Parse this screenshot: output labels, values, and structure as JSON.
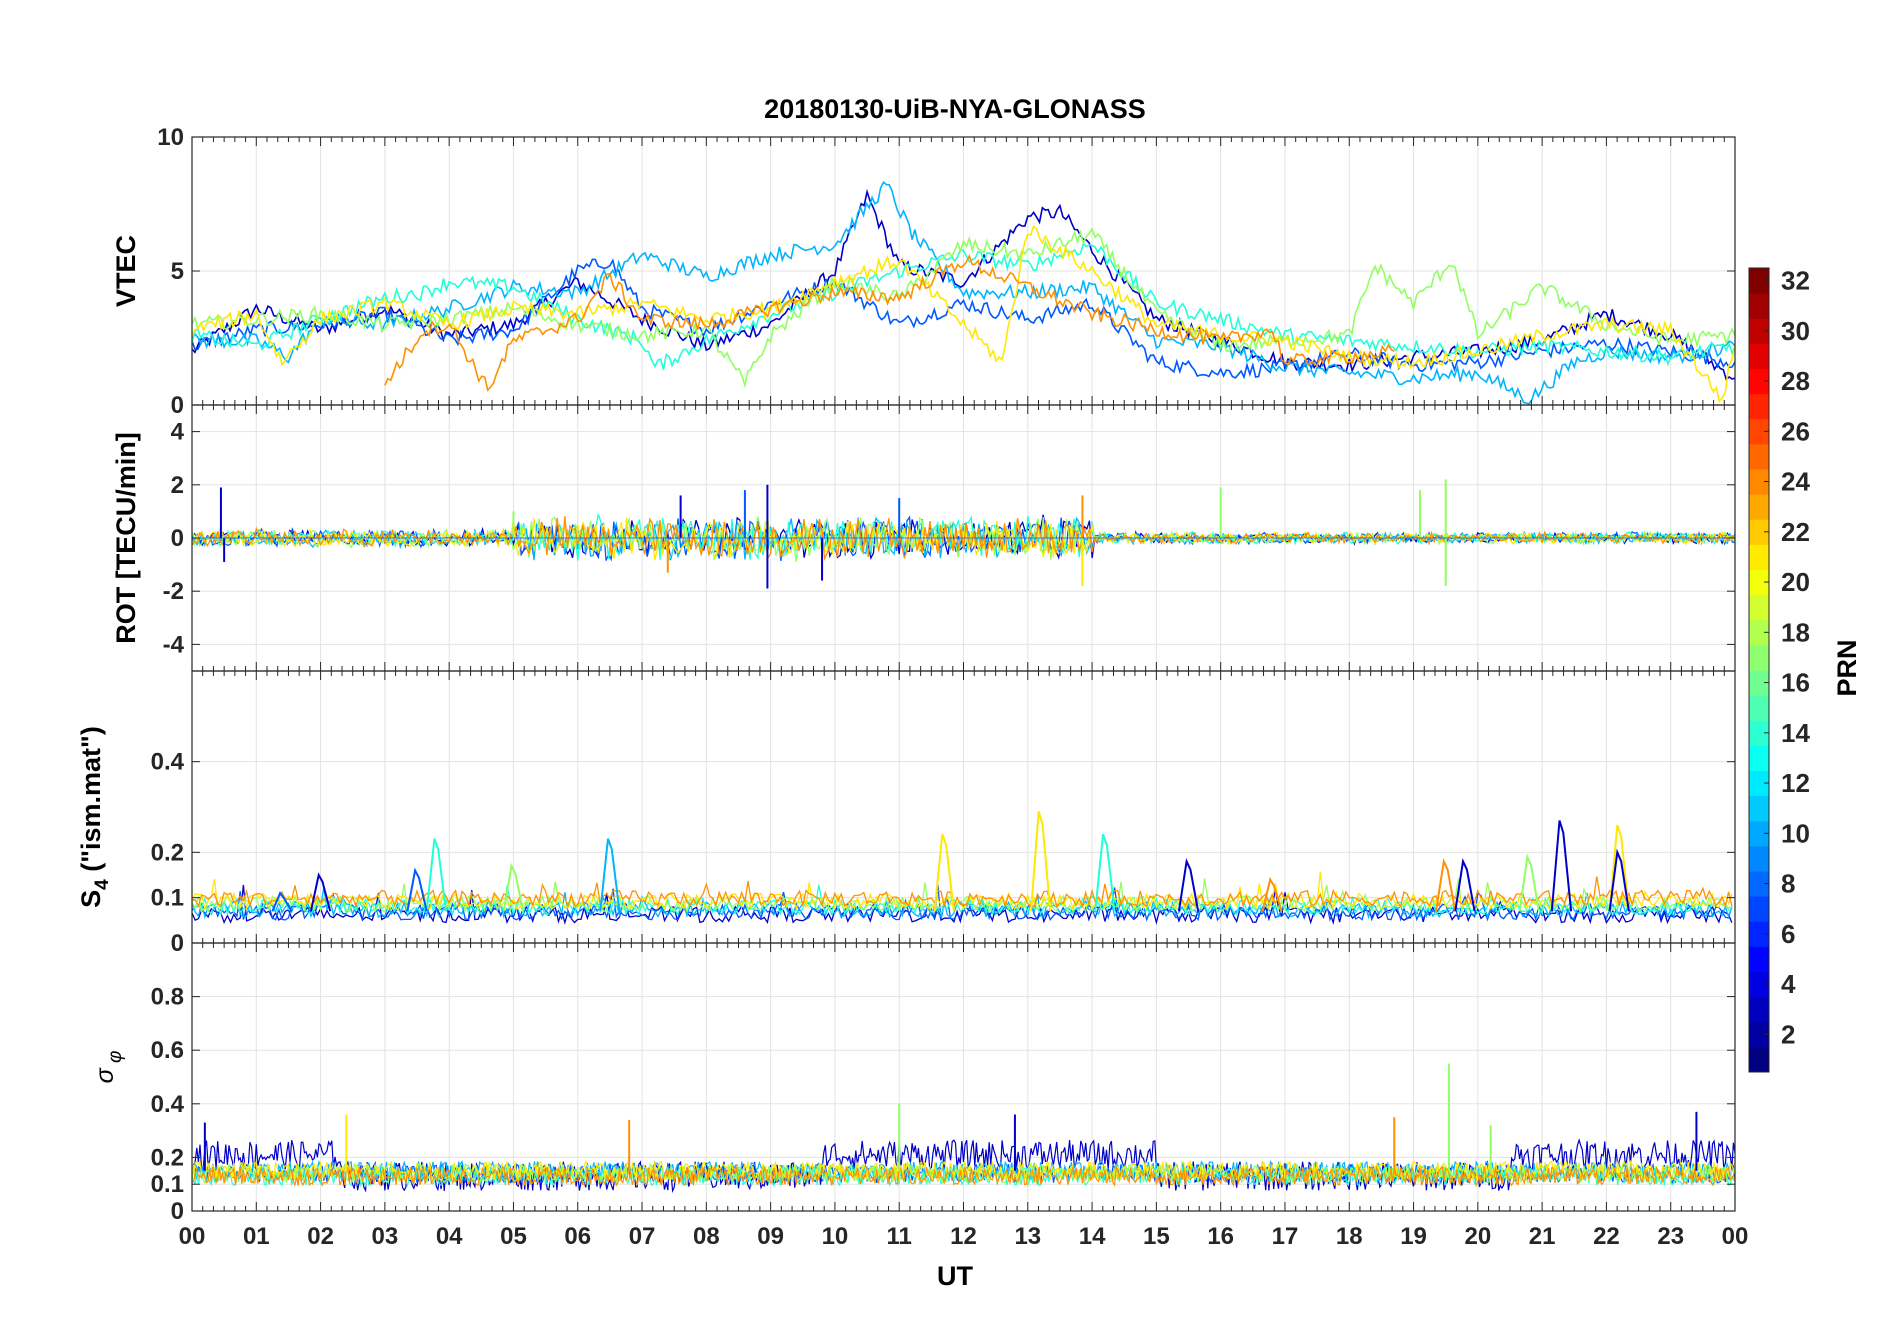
{
  "figure": {
    "title": "20180130-UiB-NYA-GLONASS",
    "xlabel": "UT",
    "xticks": [
      "00",
      "01",
      "02",
      "03",
      "04",
      "05",
      "06",
      "07",
      "08",
      "09",
      "10",
      "11",
      "12",
      "13",
      "14",
      "15",
      "16",
      "17",
      "18",
      "19",
      "20",
      "21",
      "22",
      "23",
      "00"
    ]
  },
  "colorbar": {
    "label": "PRN",
    "range": [
      1,
      32
    ],
    "ticks": [
      "2",
      "4",
      "6",
      "8",
      "10",
      "12",
      "14",
      "16",
      "18",
      "20",
      "22",
      "24",
      "26",
      "28",
      "30",
      "32"
    ],
    "colormap": "jet"
  },
  "chart_data": [
    {
      "type": "line",
      "panel": "vtec",
      "ylabel": "VTEC",
      "ylim": [
        0,
        10
      ],
      "yticks": [
        "0",
        "5",
        "10"
      ],
      "grid": true,
      "series": [
        {
          "prn": 2,
          "color": "#0000c8",
          "x": [
            0.0,
            1.0,
            2.0,
            3.0,
            4.0,
            5.0,
            6.0,
            7.0,
            8.0,
            9.0,
            10.0,
            10.5,
            11.0,
            12.0,
            13.0,
            13.5,
            14.0,
            15.0,
            16.0,
            17.0,
            18.0,
            19.0,
            20.0,
            21.0,
            22.0,
            23.0,
            24.0
          ],
          "y": [
            2.0,
            3.6,
            2.8,
            3.6,
            2.6,
            3.0,
            4.6,
            3.2,
            2.2,
            3.0,
            5.0,
            7.8,
            5.2,
            4.6,
            7.0,
            7.2,
            5.8,
            3.2,
            2.4,
            1.6,
            1.5,
            1.8,
            2.0,
            2.4,
            3.4,
            2.6,
            1.0
          ]
        },
        {
          "prn": 6,
          "color": "#0058ff",
          "x": [
            0.0,
            1.0,
            2.0,
            3.0,
            4.0,
            5.0,
            6.0,
            6.5,
            7.0,
            8.0,
            9.0,
            10.0,
            11.0,
            12.0,
            13.0,
            14.0,
            15.0,
            16.0,
            17.0,
            18.0,
            19.0,
            20.0,
            21.0,
            22.0,
            23.0,
            24.0
          ],
          "y": [
            2.2,
            2.8,
            3.0,
            3.4,
            2.4,
            2.8,
            5.0,
            5.4,
            3.6,
            2.8,
            3.8,
            4.6,
            3.0,
            3.8,
            3.2,
            3.8,
            1.6,
            1.2,
            1.4,
            1.9,
            1.5,
            1.6,
            2.0,
            2.3,
            2.0,
            1.6
          ]
        },
        {
          "prn": 10,
          "color": "#00b4ff",
          "x": [
            0.0,
            1.0,
            1.5,
            2.0,
            3.0,
            4.0,
            5.0,
            6.0,
            7.0,
            8.0,
            9.0,
            10.0,
            10.8,
            11.2,
            12.0,
            13.0,
            14.0,
            15.0,
            16.0,
            17.0,
            18.0,
            19.0,
            20.0,
            20.8,
            21.5,
            22.0,
            23.0,
            24.0
          ],
          "y": [
            2.4,
            2.4,
            1.8,
            3.2,
            3.0,
            3.6,
            4.4,
            4.2,
            5.6,
            4.8,
            5.6,
            6.0,
            8.2,
            6.4,
            4.2,
            4.2,
            4.4,
            2.4,
            2.2,
            1.4,
            1.2,
            1.0,
            1.2,
            0.2,
            1.6,
            2.0,
            1.8,
            2.2
          ]
        },
        {
          "prn": 14,
          "color": "#20ffd8",
          "x": [
            0.0,
            1.0,
            2.0,
            3.0,
            3.6,
            4.0,
            5.0,
            6.0,
            7.0,
            7.2,
            8.0,
            9.0,
            10.0,
            11.0,
            12.0,
            13.0,
            14.0,
            15.0,
            16.0,
            17.0,
            18.0,
            19.0,
            20.0,
            21.0,
            22.0,
            23.0,
            24.0
          ],
          "y": [
            2.6,
            2.2,
            3.2,
            4.0,
            4.2,
            4.6,
            4.4,
            3.2,
            2.4,
            1.4,
            2.4,
            3.4,
            4.2,
            5.0,
            5.6,
            5.2,
            6.0,
            3.8,
            3.2,
            2.6,
            2.4,
            2.2,
            2.0,
            2.2,
            2.0,
            1.8,
            2.2
          ]
        },
        {
          "prn": 17,
          "color": "#90ff60",
          "x": [
            0.0,
            1.0,
            2.0,
            3.0,
            4.0,
            5.0,
            6.0,
            7.0,
            8.0,
            8.6,
            9.0,
            10.0,
            11.0,
            12.0,
            13.0,
            14.0,
            15.0,
            16.0,
            17.0,
            18.0,
            18.4,
            19.0,
            19.6,
            20.0,
            21.0,
            22.0,
            23.0,
            24.0
          ],
          "y": [
            3.0,
            3.2,
            3.4,
            3.0,
            3.2,
            3.6,
            3.0,
            2.6,
            2.8,
            0.8,
            2.6,
            4.6,
            4.0,
            6.0,
            5.6,
            6.4,
            3.4,
            2.2,
            2.4,
            2.6,
            5.2,
            3.8,
            5.4,
            2.6,
            4.4,
            3.0,
            2.4,
            2.6
          ]
        },
        {
          "prn": 20,
          "color": "#ffe800",
          "x": [
            0.0,
            1.0,
            1.4,
            2.0,
            3.0,
            4.0,
            5.0,
            6.0,
            7.0,
            8.0,
            9.0,
            10.0,
            11.0,
            12.0,
            12.6,
            13.0,
            14.0,
            15.0,
            16.0,
            17.0,
            18.0,
            19.0,
            20.0,
            21.0,
            22.0,
            23.0,
            23.8,
            24.0
          ],
          "y": [
            2.8,
            3.4,
            1.6,
            3.2,
            3.8,
            3.0,
            3.6,
            3.4,
            3.8,
            3.2,
            3.6,
            4.6,
            5.4,
            3.0,
            1.6,
            6.6,
            5.0,
            3.0,
            2.6,
            2.4,
            1.8,
            1.6,
            2.0,
            2.6,
            3.0,
            2.8,
            0.2,
            2.2
          ]
        },
        {
          "prn": 23,
          "color": "#ff9000",
          "x": [
            3.0,
            3.6,
            4.0,
            4.6,
            5.0,
            6.0,
            6.5,
            7.0,
            8.0,
            9.0,
            10.0,
            11.0,
            12.0,
            13.0,
            14.0,
            15.0,
            16.0,
            16.8,
            17.0,
            18.0,
            18.7
          ],
          "y": [
            0.8,
            2.8,
            3.0,
            0.6,
            2.4,
            3.2,
            4.8,
            3.2,
            3.0,
            3.6,
            4.2,
            4.0,
            5.4,
            4.4,
            3.4,
            2.8,
            2.4,
            2.8,
            1.6,
            1.8,
            2.0
          ]
        }
      ]
    },
    {
      "type": "line",
      "panel": "rot",
      "ylabel": "ROT [TECU/min]",
      "ylim": [
        -5,
        5
      ],
      "yticks": [
        "-4",
        "-2",
        "0",
        "2",
        "4"
      ],
      "grid": true,
      "series_pattern": "noise around 0; envelope ±0.3 (00–05 UT), ±0.8 (05–14 UT), ±0.2 (14–24 UT)",
      "spikes": [
        {
          "x": 0.45,
          "y": 1.9,
          "color": "#0000c8"
        },
        {
          "x": 0.5,
          "y": -0.9,
          "color": "#0000c8"
        },
        {
          "x": 5.0,
          "y": 1.0,
          "color": "#90ff60"
        },
        {
          "x": 7.4,
          "y": -1.3,
          "color": "#ff9000"
        },
        {
          "x": 7.6,
          "y": 1.6,
          "color": "#0000c8"
        },
        {
          "x": 8.6,
          "y": 1.8,
          "color": "#0058ff"
        },
        {
          "x": 8.95,
          "y": 2.0,
          "color": "#0000c8"
        },
        {
          "x": 8.95,
          "y": -1.9,
          "color": "#0000c8"
        },
        {
          "x": 9.8,
          "y": -1.6,
          "color": "#0000c8"
        },
        {
          "x": 11.0,
          "y": 1.5,
          "color": "#0058ff"
        },
        {
          "x": 13.85,
          "y": 1.6,
          "color": "#ff9000"
        },
        {
          "x": 13.85,
          "y": -1.8,
          "color": "#ffe800"
        },
        {
          "x": 16.0,
          "y": 1.9,
          "color": "#90ff60"
        },
        {
          "x": 19.1,
          "y": 1.8,
          "color": "#90ff60"
        },
        {
          "x": 19.5,
          "y": 2.2,
          "color": "#90ff60"
        },
        {
          "x": 19.5,
          "y": -1.8,
          "color": "#90ff60"
        }
      ]
    },
    {
      "type": "line",
      "panel": "s4",
      "ylabel": "S4 (\"ism.mat\")",
      "ylim": [
        0,
        0.6
      ],
      "yticks": [
        "0",
        "0.1",
        "0.2",
        "0.4"
      ],
      "grid": true,
      "series_pattern": "baseline ~0.05–0.08 with noise",
      "peaks": [
        {
          "x": 1.4,
          "y": 0.11,
          "color": "#0058ff"
        },
        {
          "x": 2.0,
          "y": 0.15,
          "color": "#0000c8"
        },
        {
          "x": 3.8,
          "y": 0.23,
          "color": "#20ffd8"
        },
        {
          "x": 3.5,
          "y": 0.16,
          "color": "#0058ff"
        },
        {
          "x": 5.0,
          "y": 0.17,
          "color": "#90ff60"
        },
        {
          "x": 6.5,
          "y": 0.23,
          "color": "#00b4ff"
        },
        {
          "x": 11.7,
          "y": 0.24,
          "color": "#ffe800"
        },
        {
          "x": 13.2,
          "y": 0.29,
          "color": "#ffe800"
        },
        {
          "x": 14.2,
          "y": 0.24,
          "color": "#20ffd8"
        },
        {
          "x": 15.5,
          "y": 0.18,
          "color": "#0000c8"
        },
        {
          "x": 16.8,
          "y": 0.14,
          "color": "#ff9000"
        },
        {
          "x": 19.5,
          "y": 0.18,
          "color": "#ff9000"
        },
        {
          "x": 19.8,
          "y": 0.18,
          "color": "#0000c8"
        },
        {
          "x": 20.8,
          "y": 0.19,
          "color": "#90ff60"
        },
        {
          "x": 21.3,
          "y": 0.27,
          "color": "#0000c8"
        },
        {
          "x": 22.2,
          "y": 0.26,
          "color": "#ffe800"
        },
        {
          "x": 22.2,
          "y": 0.2,
          "color": "#0000c8"
        }
      ]
    },
    {
      "type": "line",
      "panel": "sigma_phi",
      "ylabel": "σ φ",
      "ylim": [
        0,
        1
      ],
      "yticks": [
        "0",
        "0.1",
        "0.2",
        "0.4",
        "0.6",
        "0.8"
      ],
      "grid": true,
      "series_pattern": "noise around 0.1–0.2; PRN 2 elevated ~0.2–0.25 at 00–02, 10–15, 20–24 UT",
      "peaks": [
        {
          "x": 0.2,
          "y": 0.33,
          "color": "#0000c8"
        },
        {
          "x": 2.4,
          "y": 0.36,
          "color": "#ffe800"
        },
        {
          "x": 6.8,
          "y": 0.34,
          "color": "#ff9000"
        },
        {
          "x": 11.0,
          "y": 0.4,
          "color": "#90ff60"
        },
        {
          "x": 12.8,
          "y": 0.36,
          "color": "#0000c8"
        },
        {
          "x": 18.7,
          "y": 0.35,
          "color": "#ff9000"
        },
        {
          "x": 19.55,
          "y": 0.55,
          "color": "#90ff60"
        },
        {
          "x": 20.2,
          "y": 0.32,
          "color": "#90ff60"
        },
        {
          "x": 23.4,
          "y": 0.37,
          "color": "#0000c8"
        }
      ]
    }
  ]
}
